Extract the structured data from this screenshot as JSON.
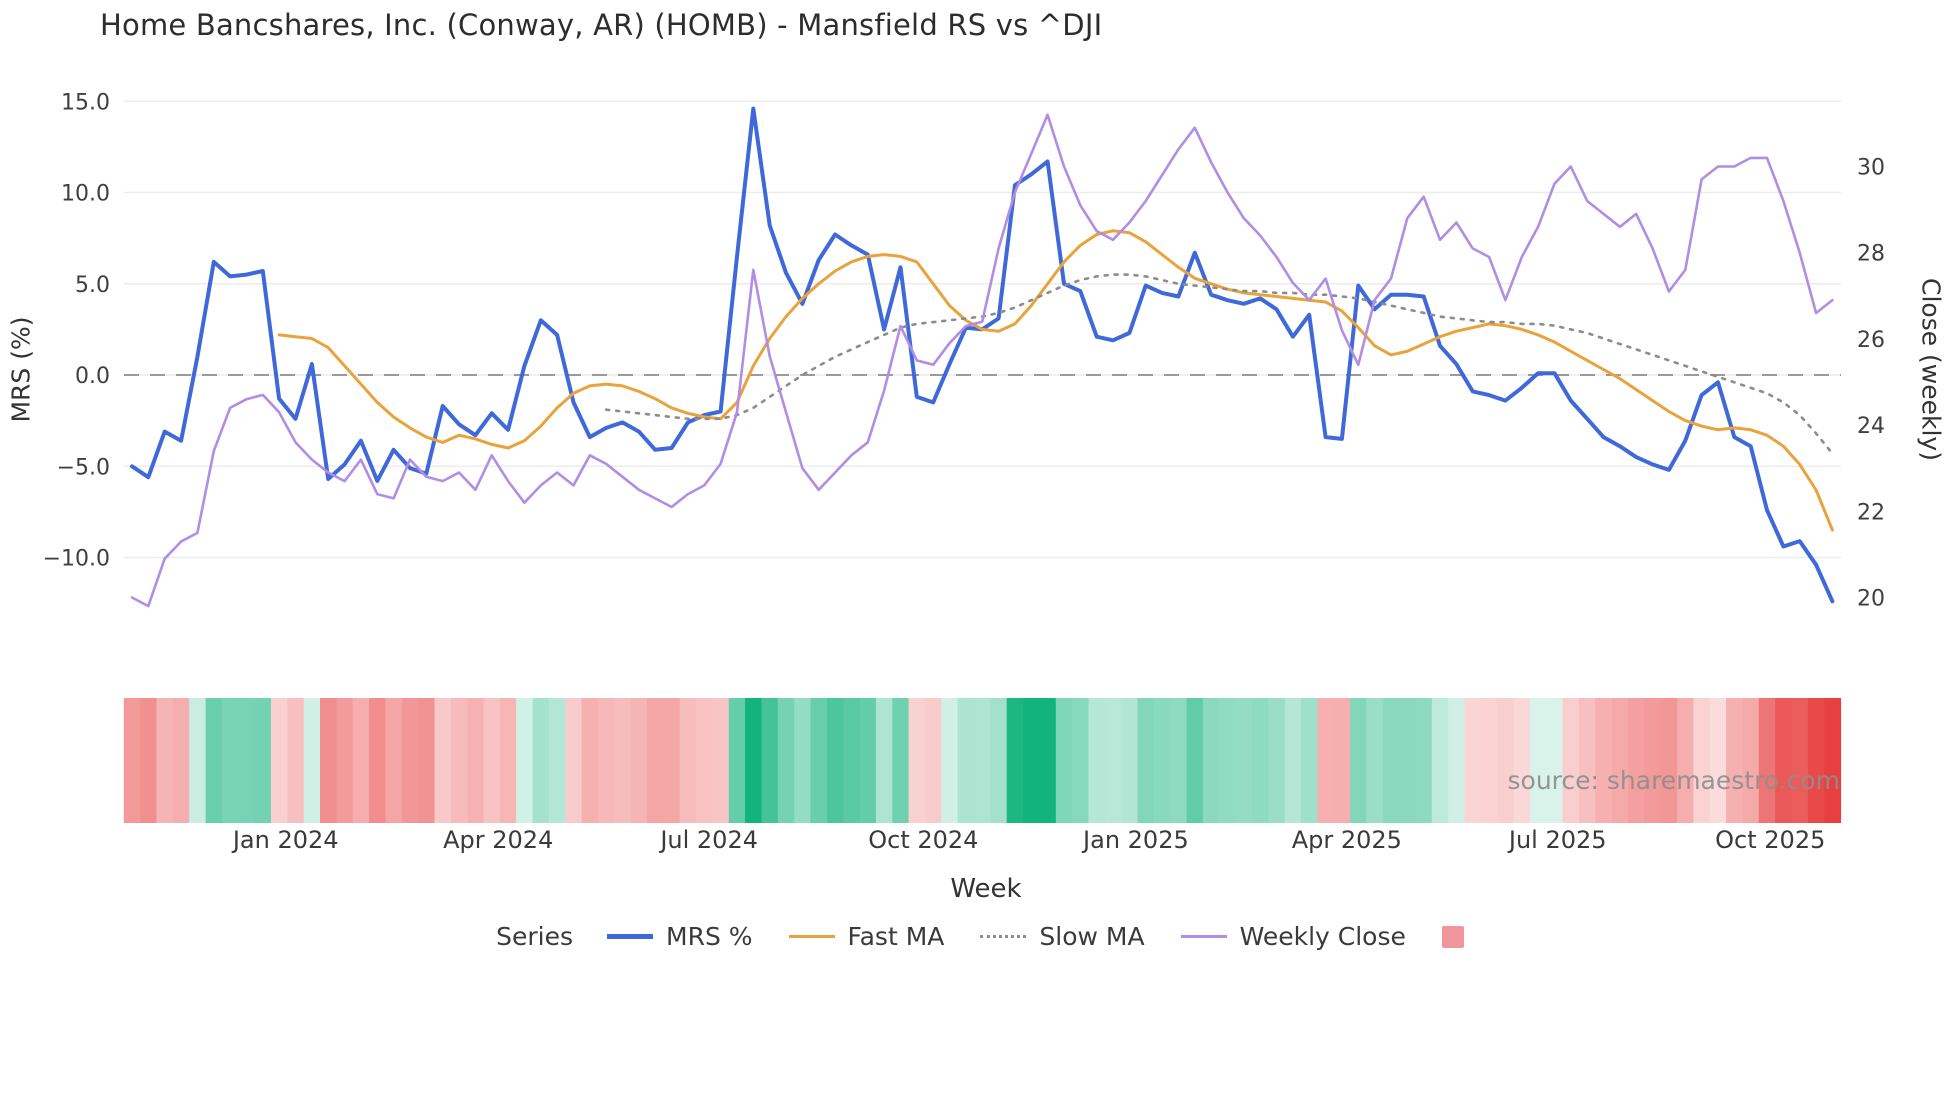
{
  "watermark": "source: sharemaestro.com",
  "chart_data": {
    "type": "line",
    "title": "Home Bancshares, Inc. (Conway, AR) (HOMB) - Mansfield RS vs ^DJI",
    "xlabel": "Week",
    "grid": true,
    "zero_line": true,
    "legend": {
      "title": "Series",
      "position": "bottom",
      "swatch_color": "#f1959c"
    },
    "left_axis": {
      "label": "MRS (%)",
      "ticks": [
        15.0,
        10.0,
        5.0,
        0.0,
        -5.0,
        -10.0
      ],
      "tick_labels": [
        "15.0",
        "10.0",
        "5.0",
        "0.0",
        "−5.0",
        "−10.0"
      ],
      "range": [
        -14.8,
        15.3
      ]
    },
    "right_axis": {
      "label": "Close (weekly)",
      "ticks": [
        30,
        28,
        26,
        24,
        22,
        20
      ],
      "tick_labels": [
        "30",
        "28",
        "26",
        "24",
        "22",
        "20"
      ],
      "range": [
        18.9,
        31.7
      ]
    },
    "n_weeks": 105,
    "x_ticks": [
      {
        "label": "Jan 2024",
        "week": 9.4
      },
      {
        "label": "Apr 2024",
        "week": 22.4
      },
      {
        "label": "Jul 2024",
        "week": 35.3
      },
      {
        "label": "Oct 2024",
        "week": 48.4
      },
      {
        "label": "Jan 2025",
        "week": 61.4
      },
      {
        "label": "Apr 2025",
        "week": 74.3
      },
      {
        "label": "Jul 2025",
        "week": 87.2
      },
      {
        "label": "Oct 2025",
        "week": 100.2
      }
    ],
    "series": [
      {
        "name": "MRS %",
        "slug": "mrs",
        "axis": "left",
        "color": "#3f69d9",
        "width": 4,
        "dash": null,
        "values": [
          -5.0,
          -5.6,
          -3.1,
          -3.6,
          1.0,
          6.2,
          5.4,
          5.5,
          5.7,
          -1.3,
          -2.4,
          0.6,
          -5.7,
          -4.9,
          -3.6,
          -5.8,
          -4.1,
          -5.1,
          -5.4,
          -1.7,
          -2.7,
          -3.3,
          -2.1,
          -3.0,
          0.5,
          3.0,
          2.2,
          -1.5,
          -3.4,
          -2.9,
          -2.6,
          -3.1,
          -4.1,
          -4.0,
          -2.6,
          -2.2,
          -2.0,
          6.5,
          14.6,
          8.2,
          5.6,
          3.9,
          6.3,
          7.7,
          7.1,
          6.6,
          2.5,
          5.9,
          -1.2,
          -1.5,
          0.6,
          2.6,
          2.5,
          3.1,
          10.4,
          11.0,
          11.7,
          5.0,
          4.6,
          2.1,
          1.9,
          2.3,
          4.9,
          4.5,
          4.3,
          6.7,
          4.4,
          4.1,
          3.9,
          4.2,
          3.6,
          2.1,
          3.3,
          -3.4,
          -3.5,
          4.9,
          3.6,
          4.4,
          4.4,
          4.3,
          1.6,
          0.6,
          -0.9,
          -1.1,
          -1.4,
          -0.7,
          0.1,
          0.1,
          -1.4,
          -2.4,
          -3.4,
          -3.9,
          -4.5,
          -4.9,
          -5.2,
          -3.6,
          -1.1,
          -0.4,
          -3.4,
          -3.9,
          -7.4,
          -9.4,
          -9.1,
          -10.4,
          -12.4
        ]
      },
      {
        "name": "Fast MA",
        "slug": "fast-ma",
        "axis": "left",
        "color": "#e8a33c",
        "width": 3,
        "dash": null,
        "values": [
          null,
          null,
          null,
          null,
          null,
          null,
          null,
          null,
          null,
          2.2,
          2.1,
          2.0,
          1.5,
          0.5,
          -0.5,
          -1.5,
          -2.3,
          -2.9,
          -3.4,
          -3.7,
          -3.3,
          -3.5,
          -3.8,
          -4.0,
          -3.6,
          -2.8,
          -1.8,
          -1.0,
          -0.6,
          -0.5,
          -0.6,
          -0.9,
          -1.3,
          -1.8,
          -2.1,
          -2.3,
          -2.4,
          -1.5,
          0.5,
          2.0,
          3.2,
          4.2,
          5.0,
          5.7,
          6.2,
          6.5,
          6.6,
          6.5,
          6.2,
          5.0,
          3.8,
          3.0,
          2.5,
          2.4,
          2.8,
          3.8,
          5.0,
          6.2,
          7.1,
          7.7,
          7.9,
          7.8,
          7.3,
          6.6,
          5.9,
          5.3,
          5.0,
          4.7,
          4.5,
          4.4,
          4.3,
          4.2,
          4.1,
          4.0,
          3.5,
          2.6,
          1.6,
          1.1,
          1.3,
          1.7,
          2.1,
          2.4,
          2.6,
          2.8,
          2.7,
          2.5,
          2.2,
          1.8,
          1.3,
          0.8,
          0.3,
          -0.2,
          -0.8,
          -1.4,
          -2.0,
          -2.5,
          -2.8,
          -3.0,
          -2.9,
          -3.0,
          -3.3,
          -3.9,
          -4.9,
          -6.3,
          -8.5
        ]
      },
      {
        "name": "Slow MA",
        "slug": "slow-ma",
        "axis": "left",
        "color": "#8c8c8c",
        "width": 2.6,
        "dash": "3 7",
        "values": [
          null,
          null,
          null,
          null,
          null,
          null,
          null,
          null,
          null,
          null,
          null,
          null,
          null,
          null,
          null,
          null,
          null,
          null,
          null,
          null,
          null,
          null,
          null,
          null,
          null,
          null,
          null,
          null,
          null,
          -1.9,
          -2.0,
          -2.1,
          -2.2,
          -2.3,
          -2.4,
          -2.4,
          -2.4,
          -2.2,
          -1.8,
          -1.2,
          -0.6,
          0.0,
          0.5,
          1.0,
          1.4,
          1.8,
          2.2,
          2.6,
          2.8,
          2.9,
          3.0,
          3.1,
          3.2,
          3.4,
          3.7,
          4.1,
          4.5,
          4.9,
          5.2,
          5.4,
          5.5,
          5.5,
          5.4,
          5.2,
          5.0,
          4.9,
          4.8,
          4.7,
          4.6,
          4.6,
          4.5,
          4.5,
          4.4,
          4.4,
          4.3,
          4.2,
          4.0,
          3.8,
          3.6,
          3.4,
          3.2,
          3.1,
          3.0,
          2.9,
          2.9,
          2.8,
          2.8,
          2.7,
          2.5,
          2.3,
          2.0,
          1.7,
          1.4,
          1.1,
          0.8,
          0.5,
          0.2,
          -0.1,
          -0.4,
          -0.7,
          -1.0,
          -1.5,
          -2.2,
          -3.2,
          -4.3
        ]
      },
      {
        "name": "Weekly Close",
        "slug": "weekly-close",
        "axis": "right",
        "color": "#b18de4",
        "width": 2.6,
        "dash": null,
        "values": [
          20.0,
          19.8,
          20.9,
          21.3,
          21.5,
          23.4,
          24.4,
          24.6,
          24.7,
          24.3,
          23.6,
          23.2,
          22.9,
          22.7,
          23.2,
          22.4,
          22.3,
          23.2,
          22.8,
          22.7,
          22.9,
          22.5,
          23.3,
          22.7,
          22.2,
          22.6,
          22.9,
          22.6,
          23.3,
          23.1,
          22.8,
          22.5,
          22.3,
          22.1,
          22.4,
          22.6,
          23.1,
          24.3,
          27.6,
          25.6,
          24.3,
          23.0,
          22.5,
          22.9,
          23.3,
          23.6,
          24.8,
          26.3,
          25.5,
          25.4,
          25.9,
          26.3,
          26.4,
          28.1,
          29.4,
          30.3,
          31.2,
          30.0,
          29.1,
          28.5,
          28.3,
          28.7,
          29.2,
          29.8,
          30.4,
          30.9,
          30.1,
          29.4,
          28.8,
          28.4,
          27.9,
          27.3,
          26.9,
          27.4,
          26.2,
          25.4,
          26.9,
          27.4,
          28.8,
          29.3,
          28.3,
          28.7,
          28.1,
          27.9,
          26.9,
          27.9,
          28.6,
          29.6,
          30.0,
          29.2,
          28.9,
          28.6,
          28.9,
          28.1,
          27.1,
          27.6,
          29.7,
          30.0,
          30.0,
          30.2,
          30.2,
          29.2,
          28.0,
          26.6,
          26.9
        ]
      }
    ],
    "heatmap": {
      "derived_from": "MRS %",
      "positive_color": "#12b37c",
      "negative_color": "#e84040"
    }
  }
}
